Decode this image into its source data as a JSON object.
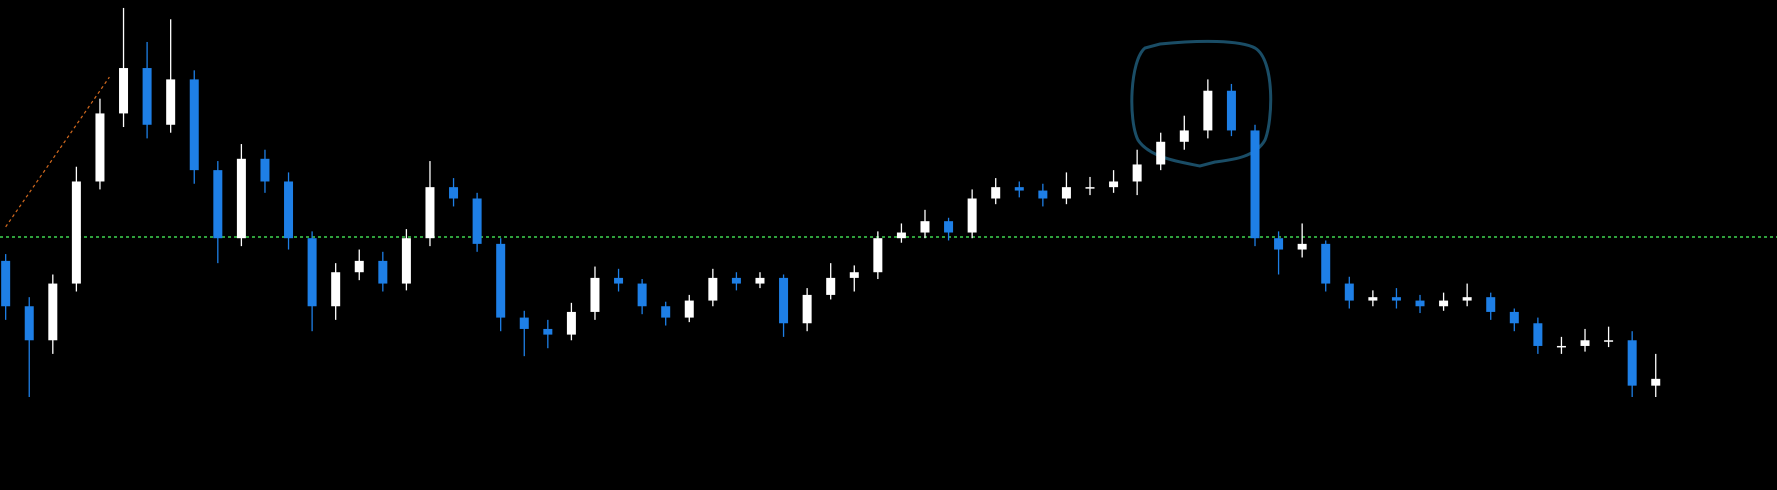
{
  "chart_data": {
    "type": "candlestick",
    "ylim": [
      0,
      432
    ],
    "up_color": "#ffffff",
    "down_color": "#1e7fe6",
    "hline": {
      "value": 223,
      "color": "#2fa03c"
    },
    "trendline": {
      "x": [
        0,
        4.4
      ],
      "y": [
        232,
        364
      ],
      "color": "#d2691e"
    },
    "ohlc": [
      [
        202,
        208,
        150,
        162
      ],
      [
        162,
        170,
        82,
        132
      ],
      [
        132,
        190,
        120,
        182
      ],
      [
        182,
        285,
        175,
        272
      ],
      [
        272,
        345,
        265,
        332
      ],
      [
        332,
        425,
        320,
        372
      ],
      [
        372,
        395,
        310,
        322
      ],
      [
        322,
        415,
        315,
        362
      ],
      [
        362,
        370,
        270,
        282
      ],
      [
        282,
        290,
        200,
        222
      ],
      [
        222,
        305,
        215,
        292
      ],
      [
        292,
        300,
        262,
        272
      ],
      [
        272,
        280,
        212,
        222
      ],
      [
        222,
        228,
        140,
        162
      ],
      [
        162,
        200,
        150,
        192
      ],
      [
        192,
        212,
        185,
        202
      ],
      [
        202,
        210,
        175,
        182
      ],
      [
        182,
        230,
        176,
        222
      ],
      [
        222,
        290,
        215,
        267
      ],
      [
        267,
        275,
        250,
        257
      ],
      [
        257,
        262,
        210,
        217
      ],
      [
        217,
        222,
        140,
        152
      ],
      [
        152,
        158,
        118,
        142
      ],
      [
        142,
        150,
        125,
        137
      ],
      [
        137,
        165,
        132,
        157
      ],
      [
        157,
        197,
        150,
        187
      ],
      [
        187,
        195,
        175,
        182
      ],
      [
        182,
        186,
        155,
        162
      ],
      [
        162,
        166,
        145,
        152
      ],
      [
        152,
        172,
        148,
        167
      ],
      [
        167,
        195,
        162,
        187
      ],
      [
        187,
        192,
        176,
        182
      ],
      [
        182,
        192,
        178,
        187
      ],
      [
        187,
        190,
        135,
        147
      ],
      [
        147,
        178,
        140,
        172
      ],
      [
        172,
        200,
        168,
        187
      ],
      [
        187,
        198,
        175,
        192
      ],
      [
        192,
        228,
        186,
        222
      ],
      [
        222,
        235,
        218,
        227
      ],
      [
        227,
        247,
        222,
        237
      ],
      [
        237,
        240,
        220,
        227
      ],
      [
        227,
        265,
        222,
        257
      ],
      [
        257,
        275,
        252,
        267
      ],
      [
        267,
        272,
        258,
        264
      ],
      [
        264,
        270,
        250,
        257
      ],
      [
        257,
        280,
        252,
        267
      ],
      [
        267,
        276,
        260,
        267
      ],
      [
        267,
        282,
        262,
        272
      ],
      [
        272,
        300,
        260,
        287
      ],
      [
        287,
        315,
        282,
        307
      ],
      [
        307,
        330,
        300,
        317
      ],
      [
        317,
        362,
        310,
        352
      ],
      [
        352,
        358,
        312,
        317
      ],
      [
        317,
        322,
        215,
        222
      ],
      [
        222,
        228,
        190,
        212
      ],
      [
        212,
        235,
        205,
        217
      ],
      [
        217,
        220,
        175,
        182
      ],
      [
        182,
        188,
        160,
        167
      ],
      [
        167,
        176,
        162,
        170
      ],
      [
        170,
        178,
        160,
        167
      ],
      [
        167,
        172,
        156,
        162
      ],
      [
        162,
        174,
        158,
        167
      ],
      [
        167,
        182,
        162,
        170
      ],
      [
        170,
        174,
        150,
        157
      ],
      [
        157,
        160,
        140,
        147
      ],
      [
        147,
        152,
        120,
        127
      ],
      [
        127,
        135,
        120,
        127
      ],
      [
        127,
        142,
        122,
        132
      ],
      [
        132,
        144,
        126,
        132
      ],
      [
        132,
        140,
        82,
        92
      ],
      [
        92,
        120,
        82,
        98
      ]
    ]
  }
}
